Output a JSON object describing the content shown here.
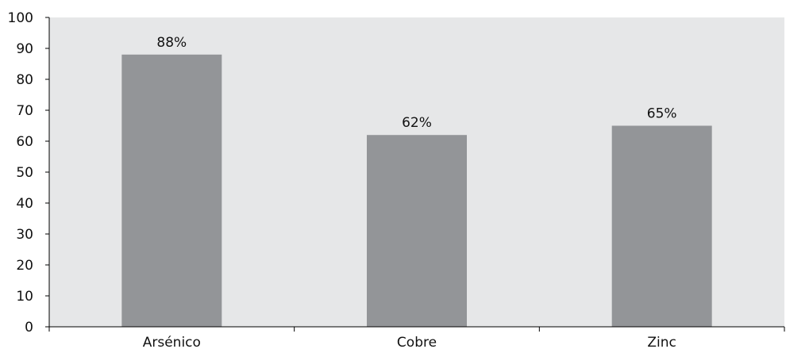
{
  "chart_data": {
    "type": "bar",
    "categories": [
      "Arsénico",
      "Cobre",
      "Zinc"
    ],
    "values": [
      88,
      62,
      65
    ],
    "data_labels": [
      "88%",
      "62%",
      "65%"
    ],
    "ylim": [
      0,
      100
    ],
    "yticks": [
      0,
      10,
      20,
      30,
      40,
      50,
      60,
      70,
      80,
      90,
      100
    ],
    "title": "",
    "xlabel": "",
    "ylabel": "",
    "grid": false,
    "legend": "none"
  },
  "colors": {
    "bar": "#939598",
    "plot_background": "#e6e7e8",
    "axis": "#000000"
  }
}
